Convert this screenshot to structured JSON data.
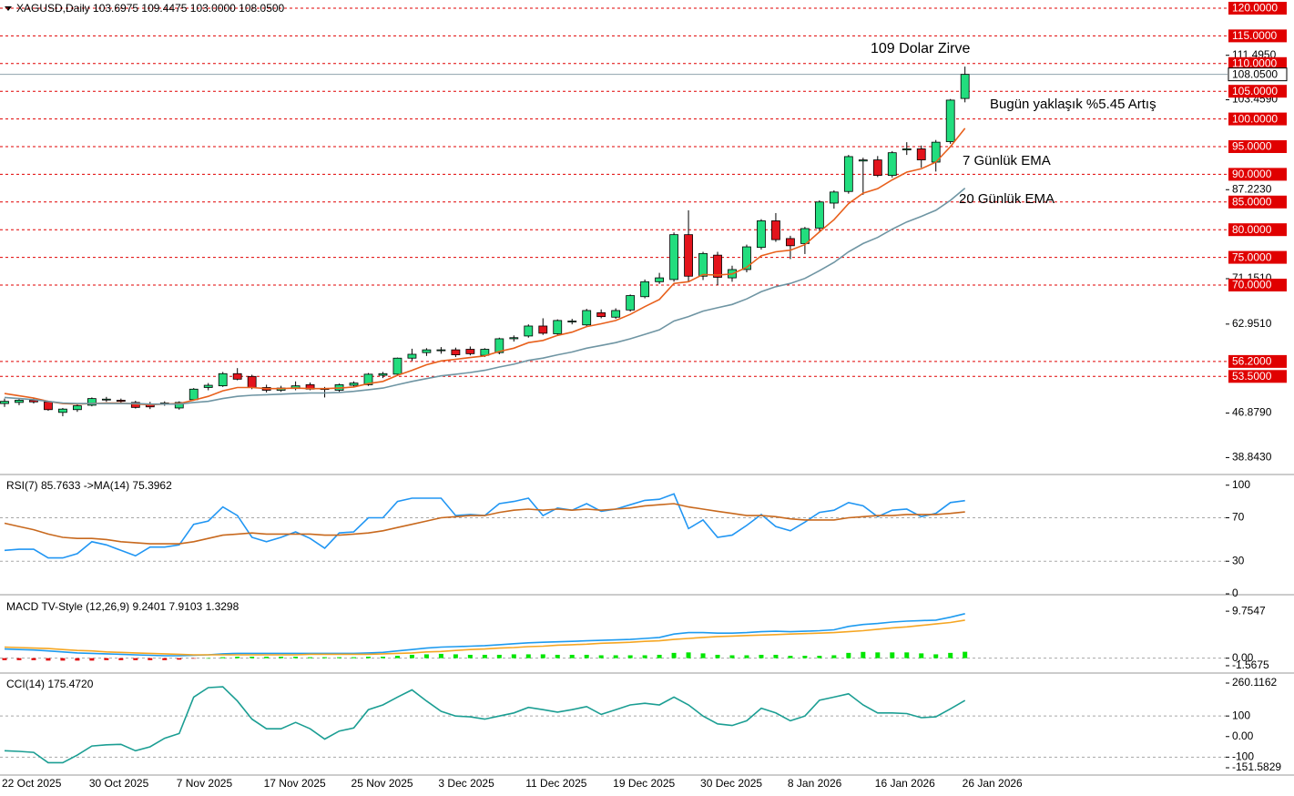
{
  "chart_data": [
    {
      "type": "candlestick",
      "title": "XAGUSD,Daily  103.6975 109.4475 103.0000 108.0500",
      "categories": [
        "22 Oct 2025",
        null,
        null,
        null,
        null,
        null,
        "30 Oct 2025",
        null,
        null,
        null,
        null,
        null,
        "7 Nov 2025",
        null,
        null,
        null,
        null,
        null,
        "17 Nov 2025",
        null,
        null,
        null,
        null,
        null,
        "25 Nov 2025",
        null,
        null,
        null,
        null,
        null,
        "3 Dec 2025",
        null,
        null,
        null,
        null,
        null,
        "11 Dec 2025",
        null,
        null,
        null,
        null,
        null,
        "19 Dec 2025",
        null,
        null,
        null,
        null,
        null,
        "30 Dec 2025",
        null,
        null,
        null,
        null,
        null,
        "8 Jan 2026",
        null,
        null,
        null,
        null,
        null,
        "16 Jan 2026",
        null,
        null,
        null,
        null,
        null,
        "26 Jan 2026"
      ],
      "open": [
        48.6,
        48.8,
        49.2,
        48.9,
        47.0,
        47.5,
        48.3,
        49.3,
        49.2,
        48.8,
        48.5,
        48.6,
        47.8,
        49.3,
        51.5,
        51.8,
        54.0,
        53.5,
        51.5,
        51.0,
        51.3,
        52.0,
        51.3,
        51.0,
        51.9,
        52.0,
        53.7,
        53.9,
        56.8,
        57.8,
        58.3,
        58.3,
        58.4,
        57.3,
        57.8,
        60.3,
        60.8,
        62.6,
        61.2,
        63.4,
        62.8,
        65.0,
        64.2,
        65.5,
        67.9,
        70.6,
        71.0,
        79.1,
        71.6,
        75.4,
        71.3,
        72.8,
        76.8,
        81.6,
        78.4,
        77.5,
        80.3,
        84.8,
        86.9,
        92.4,
        92.6,
        89.8,
        94.4,
        94.6,
        92.2,
        95.9,
        103.6975
      ],
      "high": [
        49.5,
        49.4,
        49.6,
        49.1,
        47.8,
        48.4,
        49.7,
        49.8,
        49.5,
        49.1,
        48.9,
        49.0,
        49.0,
        51.4,
        52.3,
        54.3,
        55.0,
        53.8,
        52.0,
        51.8,
        52.6,
        52.4,
        51.6,
        52.2,
        52.6,
        54.1,
        54.3,
        56.9,
        58.5,
        58.6,
        58.8,
        58.7,
        58.9,
        58.6,
        60.5,
        60.9,
        62.9,
        64.0,
        63.8,
        63.9,
        65.7,
        65.6,
        65.8,
        68.3,
        71.0,
        72.2,
        79.5,
        83.5,
        76.0,
        76.0,
        73.5,
        77.3,
        81.9,
        83.0,
        78.9,
        80.5,
        85.3,
        87.1,
        93.5,
        93.0,
        93.3,
        94.2,
        95.8,
        95.2,
        96.2,
        103.6,
        109.4475
      ],
      "low": [
        48.0,
        48.3,
        48.6,
        47.3,
        46.3,
        47.1,
        48.1,
        48.9,
        48.6,
        47.7,
        47.6,
        48.2,
        47.5,
        49.1,
        51.0,
        51.6,
        52.8,
        51.2,
        50.6,
        50.7,
        51.0,
        51.0,
        49.7,
        50.7,
        51.6,
        51.8,
        53.2,
        53.7,
        56.3,
        57.2,
        57.6,
        57.0,
        57.3,
        57.0,
        57.5,
        59.8,
        60.5,
        61.0,
        60.9,
        62.9,
        62.5,
        64.0,
        63.9,
        65.2,
        67.6,
        70.2,
        70.6,
        70.6,
        70.9,
        70.0,
        70.6,
        72.3,
        76.4,
        77.8,
        74.7,
        75.6,
        79.8,
        83.8,
        86.5,
        86.3,
        89.5,
        89.4,
        93.5,
        91.2,
        90.5,
        95.5,
        103.0
      ],
      "close": [
        49.0,
        49.2,
        48.9,
        47.5,
        47.6,
        48.2,
        49.5,
        49.4,
        49.0,
        47.9,
        48.0,
        48.7,
        48.8,
        51.2,
        51.9,
        54.0,
        53.0,
        51.5,
        51.0,
        51.4,
        51.8,
        51.2,
        51.2,
        52.0,
        52.3,
        53.9,
        54.0,
        56.8,
        57.5,
        58.3,
        58.3,
        57.4,
        57.6,
        58.4,
        60.3,
        60.5,
        62.6,
        61.3,
        63.6,
        63.5,
        65.4,
        64.3,
        65.4,
        68.1,
        70.6,
        71.3,
        79.1,
        71.6,
        75.7,
        71.4,
        72.8,
        76.9,
        81.6,
        78.2,
        77.1,
        80.2,
        85.0,
        86.8,
        93.2,
        92.6,
        89.8,
        93.9,
        94.6,
        92.6,
        95.8,
        103.4,
        108.05
      ],
      "up_color": "#22dd7e",
      "down_color": "#e3141c",
      "series": [
        {
          "name": "7 Günlük EMA",
          "color": "#e8601c",
          "values": [
            50.4,
            50.0,
            49.6,
            49.0,
            48.6,
            48.5,
            48.6,
            48.7,
            48.7,
            48.5,
            48.4,
            48.5,
            48.6,
            49.2,
            49.9,
            50.9,
            51.5,
            51.5,
            51.3,
            51.3,
            51.4,
            51.3,
            51.3,
            51.4,
            51.6,
            52.2,
            52.6,
            53.7,
            54.6,
            55.6,
            56.3,
            56.6,
            56.9,
            57.2,
            58.0,
            58.6,
            59.6,
            60.0,
            60.9,
            61.5,
            62.5,
            63.0,
            63.6,
            64.7,
            66.1,
            67.4,
            70.3,
            70.6,
            71.9,
            71.8,
            72.0,
            73.2,
            75.3,
            76.0,
            76.3,
            77.3,
            79.6,
            81.8,
            84.7,
            86.6,
            87.4,
            89.0,
            90.4,
            91.0,
            92.2,
            95.0,
            98.3
          ]
        },
        {
          "name": "20 Günlük EMA",
          "color": "#6f95a3",
          "values": [
            49.7,
            49.5,
            49.3,
            49.0,
            48.7,
            48.6,
            48.6,
            48.6,
            48.6,
            48.6,
            48.5,
            48.5,
            48.5,
            48.8,
            49.0,
            49.5,
            49.9,
            50.1,
            50.2,
            50.3,
            50.4,
            50.5,
            50.5,
            50.6,
            50.8,
            51.1,
            51.4,
            52.0,
            52.6,
            53.1,
            53.6,
            53.9,
            54.2,
            54.6,
            55.2,
            55.7,
            56.4,
            56.8,
            57.4,
            57.9,
            58.6,
            59.1,
            59.6,
            60.3,
            61.1,
            61.9,
            63.5,
            64.3,
            65.3,
            65.9,
            66.5,
            67.5,
            68.8,
            69.7,
            70.3,
            71.2,
            72.6,
            74.1,
            76.0,
            77.5,
            78.6,
            80.1,
            81.4,
            82.4,
            83.5,
            85.3,
            87.5
          ]
        }
      ],
      "annotations": [
        "109 Dolar Zirve",
        "Bugün yaklaşık %5.45 Artış"
      ],
      "ylim": [
        35.95,
        121.48
      ],
      "yticks": [
        {
          "value": 111.495,
          "label": "111.4950"
        },
        {
          "value": 103.459,
          "label": "103.4590"
        },
        {
          "value": 87.223,
          "label": "87.2230"
        },
        {
          "value": 71.151,
          "label": "71.1510"
        },
        {
          "value": 62.951,
          "label": "62.9510"
        },
        {
          "value": 46.879,
          "label": "46.8790"
        },
        {
          "value": 38.843,
          "label": "38.8430"
        }
      ],
      "levels": [
        {
          "value": 120,
          "label": "120.0000"
        },
        {
          "value": 115,
          "label": "115.0000"
        },
        {
          "value": 110,
          "label": "110.0000"
        },
        {
          "value": 105,
          "label": "105.0000"
        },
        {
          "value": 100,
          "label": "100.0000"
        },
        {
          "value": 95,
          "label": "95.0000"
        },
        {
          "value": 90,
          "label": "90.0000"
        },
        {
          "value": 85,
          "label": "85.0000"
        },
        {
          "value": 80,
          "label": "80.0000"
        },
        {
          "value": 75,
          "label": "75.0000"
        },
        {
          "value": 70,
          "label": "70.0000"
        },
        {
          "value": 56.2,
          "label": "56.2000"
        },
        {
          "value": 53.5,
          "label": "53.5000"
        }
      ],
      "level_color": "#e00000",
      "price_line": {
        "value": 108.05,
        "label": "108.0500"
      },
      "price_line_color": "#8fa3ad"
    },
    {
      "type": "line",
      "title": "RSI(7) 85.7633  ->MA(14) 75.3962",
      "series": [
        {
          "color": "#2196f3",
          "values": [
            40,
            41,
            41,
            33,
            33,
            37,
            48,
            45,
            40,
            35,
            43,
            43,
            45,
            64,
            67,
            80,
            72,
            52,
            48,
            52,
            57,
            51,
            42,
            56,
            57,
            70,
            70,
            85,
            88,
            88,
            88,
            72,
            73,
            72,
            83,
            85,
            88,
            72,
            79,
            77,
            83,
            76,
            78,
            82,
            86,
            87,
            92,
            60,
            68,
            52,
            54,
            63,
            73,
            62,
            58,
            66,
            75,
            77,
            84,
            81,
            71,
            77,
            78,
            71,
            74,
            84,
            85.7633
          ]
        },
        {
          "color": "#c8691e",
          "values": [
            65,
            62,
            59,
            55,
            52,
            51,
            51,
            50,
            48,
            47,
            46,
            46,
            46,
            48,
            51,
            54,
            55,
            56,
            55,
            55,
            55,
            55,
            54,
            54,
            55,
            56,
            58,
            61,
            64,
            67,
            70,
            71,
            72,
            72,
            75,
            77,
            78,
            77,
            78,
            77,
            78,
            77,
            78,
            79,
            81,
            82,
            83,
            80,
            78,
            76,
            74,
            72,
            72,
            71,
            69,
            68,
            68,
            68,
            70,
            71,
            72,
            72,
            73,
            73,
            73,
            74,
            75.3962
          ]
        }
      ],
      "ylim": [
        0,
        109
      ],
      "yticks": [
        100,
        70,
        30,
        0
      ],
      "levels": [
        70,
        30
      ],
      "level_color": "#a8a8a8"
    },
    {
      "type": "macd",
      "title": "MACD TV-Style (12,26,9) 9.2401 7.9103 1.3298",
      "series": [
        {
          "color": "#1e9bef",
          "values": [
            1.9,
            1.8,
            1.7,
            1.5,
            1.3,
            1.1,
            1.0,
            0.9,
            0.8,
            0.7,
            0.6,
            0.5,
            0.5,
            0.6,
            0.7,
            0.9,
            1.0,
            1.0,
            1.0,
            1.0,
            1.0,
            1.0,
            1.0,
            1.0,
            1.0,
            1.1,
            1.2,
            1.5,
            1.8,
            2.1,
            2.3,
            2.4,
            2.5,
            2.6,
            2.8,
            3.0,
            3.2,
            3.3,
            3.4,
            3.5,
            3.6,
            3.7,
            3.8,
            3.9,
            4.1,
            4.3,
            5.0,
            5.3,
            5.3,
            5.2,
            5.2,
            5.3,
            5.5,
            5.6,
            5.5,
            5.6,
            5.7,
            5.9,
            6.6,
            7.0,
            7.2,
            7.5,
            7.7,
            7.8,
            7.9,
            8.5,
            9.2401
          ]
        },
        {
          "color": "#f5a623",
          "values": [
            2.3,
            2.2,
            2.1,
            2.0,
            1.8,
            1.6,
            1.5,
            1.3,
            1.2,
            1.1,
            1.0,
            0.9,
            0.8,
            0.7,
            0.7,
            0.7,
            0.7,
            0.7,
            0.7,
            0.7,
            0.7,
            0.8,
            0.8,
            0.8,
            0.8,
            0.8,
            0.9,
            1.0,
            1.1,
            1.3,
            1.4,
            1.6,
            1.8,
            1.9,
            2.1,
            2.2,
            2.4,
            2.5,
            2.7,
            2.8,
            2.9,
            3.1,
            3.2,
            3.3,
            3.5,
            3.6,
            3.9,
            4.1,
            4.3,
            4.5,
            4.6,
            4.7,
            4.8,
            4.9,
            5.0,
            5.1,
            5.2,
            5.3,
            5.5,
            5.7,
            6.0,
            6.3,
            6.5,
            6.8,
            7.1,
            7.4,
            7.9103
          ]
        }
      ],
      "histogram": {
        "positive_color": "#00e600",
        "negative_color": "#e00000",
        "values": [
          -0.4,
          -0.4,
          -0.4,
          -0.5,
          -0.5,
          -0.5,
          -0.5,
          -0.4,
          -0.4,
          -0.4,
          -0.4,
          -0.4,
          -0.3,
          -0.1,
          0.0,
          0.2,
          0.3,
          0.3,
          0.3,
          0.3,
          0.3,
          0.2,
          0.2,
          0.2,
          0.2,
          0.3,
          0.3,
          0.5,
          0.7,
          0.8,
          0.9,
          0.8,
          0.7,
          0.7,
          0.7,
          0.8,
          0.8,
          0.8,
          0.7,
          0.7,
          0.7,
          0.6,
          0.6,
          0.6,
          0.6,
          0.7,
          1.1,
          1.2,
          1.0,
          0.7,
          0.6,
          0.6,
          0.7,
          0.7,
          0.5,
          0.5,
          0.5,
          0.6,
          1.1,
          1.3,
          1.2,
          1.2,
          1.2,
          1.0,
          0.8,
          1.1,
          1.3298
        ]
      },
      "ylim": [
        -2.9,
        12.8
      ],
      "yticks": [
        9.7547,
        {
          "value": 0,
          "label": "0.00"
        },
        -1.5675
      ],
      "levels": [
        0
      ],
      "level_color": "#a8a8a8"
    },
    {
      "type": "line",
      "title": "CCI(14) 175.4720",
      "series": [
        {
          "color": "#1b9e93",
          "values": [
            -69,
            -72,
            -77,
            -127,
            -127,
            -90,
            -46,
            -40,
            -38,
            -69,
            -50,
            -8,
            15,
            192,
            238,
            242,
            173,
            85,
            38,
            38,
            69,
            38,
            -12,
            27,
            42,
            131,
            154,
            192,
            227,
            173,
            123,
            100,
            96,
            85,
            100,
            115,
            142,
            131,
            119,
            131,
            146,
            108,
            131,
            154,
            162,
            154,
            192,
            154,
            100,
            62,
            54,
            77,
            138,
            115,
            77,
            100,
            177,
            192,
            208,
            154,
            115,
            115,
            112,
            92,
            96,
            135,
            175.472
          ]
        }
      ],
      "ylim": [
        -182.6,
        304.4
      ],
      "yticks": [
        260.1162,
        100,
        {
          "value": 0,
          "label": "0.00"
        },
        -100,
        -151.5829
      ],
      "levels": [
        100,
        -100
      ],
      "level_color": "#a8a8a8"
    }
  ]
}
